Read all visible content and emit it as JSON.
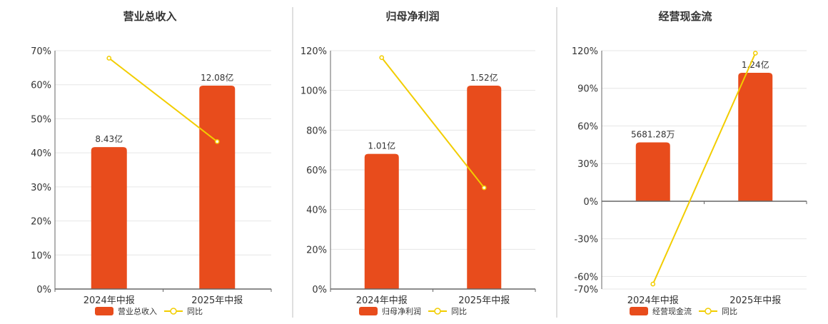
{
  "colors": {
    "bar": "#e84c1c",
    "line": "#f2cd00",
    "grid": "#e6e6e6",
    "axis": "#666666",
    "text": "#333333"
  },
  "chart_data": [
    {
      "type": "bar+line",
      "title": "营业总收入",
      "categories": [
        "2024年中报",
        "2025年中报"
      ],
      "bar_labels": [
        "8.43亿",
        "12.08亿"
      ],
      "series": [
        {
          "name": "营业总收入",
          "type": "bar",
          "values": [
            8.43,
            12.08
          ],
          "unit": "亿"
        },
        {
          "name": "同比",
          "type": "line",
          "values": [
            67.8,
            43.3
          ],
          "unit": "%"
        }
      ],
      "y_ticks": [
        "0%",
        "10%",
        "20%",
        "30%",
        "40%",
        "50%",
        "60%",
        "70%"
      ],
      "ylim": [
        0,
        70
      ],
      "grid": true,
      "legend_position": "bottom"
    },
    {
      "type": "bar+line",
      "title": "归母净利润",
      "categories": [
        "2024年中报",
        "2025年中报"
      ],
      "bar_labels": [
        "1.01亿",
        "1.52亿"
      ],
      "series": [
        {
          "name": "归母净利润",
          "type": "bar",
          "values": [
            1.01,
            1.52
          ],
          "unit": "亿"
        },
        {
          "name": "同比",
          "type": "line",
          "values": [
            116.5,
            51.0
          ],
          "unit": "%"
        }
      ],
      "y_ticks": [
        "0%",
        "20%",
        "40%",
        "60%",
        "80%",
        "100%",
        "120%"
      ],
      "ylim": [
        0,
        120
      ],
      "grid": true,
      "legend_position": "bottom"
    },
    {
      "type": "bar+line",
      "title": "经营现金流",
      "categories": [
        "2024年中报",
        "2025年中报"
      ],
      "bar_labels": [
        "5681.28万",
        "1.24亿"
      ],
      "series": [
        {
          "name": "经营现金流",
          "type": "bar",
          "values": [
            0.568128,
            1.24
          ],
          "unit": "亿"
        },
        {
          "name": "同比",
          "type": "line",
          "values": [
            -66.0,
            118.0
          ],
          "unit": "%"
        }
      ],
      "y_ticks": [
        "-70%",
        "-60%",
        "-30%",
        "0%",
        "30%",
        "60%",
        "90%",
        "120%"
      ],
      "ylim": [
        -70,
        120
      ],
      "grid": true,
      "legend_position": "bottom"
    }
  ]
}
